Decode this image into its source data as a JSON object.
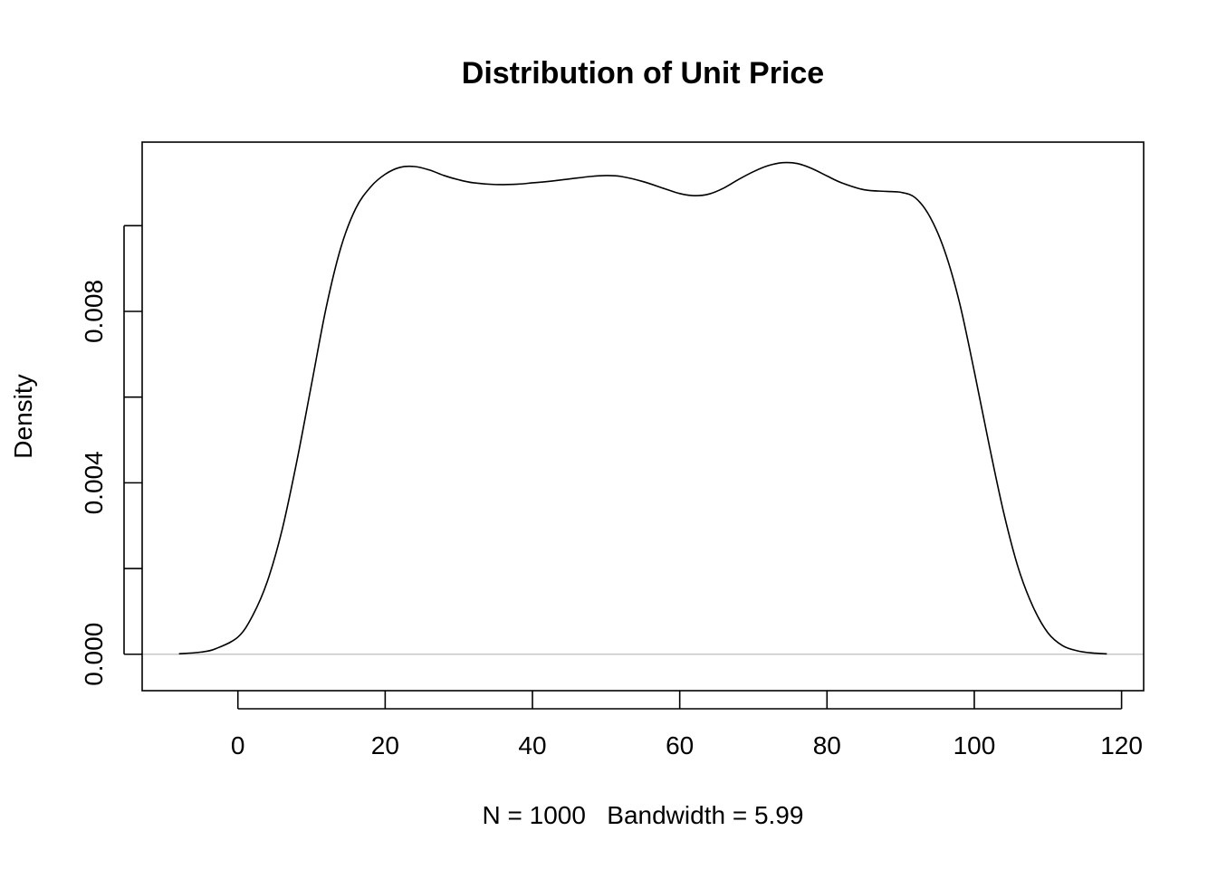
{
  "chart_data": {
    "type": "line",
    "title": "Distribution of Unit Price",
    "xlabel": "N = 1000   Bandwidth = 5.99",
    "ylabel": "Density",
    "xlim": [
      -13,
      123
    ],
    "ylim": [
      -0.00085,
      0.01195
    ],
    "x_ticks": [
      0,
      20,
      40,
      60,
      80,
      100,
      120
    ],
    "x_tick_labels": [
      "0",
      "20",
      "40",
      "60",
      "80",
      "100",
      "120"
    ],
    "y_ticks": [
      0.0,
      0.002,
      0.004,
      0.006,
      0.008,
      0.01
    ],
    "y_tick_labels": [
      "0.000",
      "",
      "0.004",
      "",
      "0.008",
      ""
    ],
    "baseline": 0,
    "grid": false,
    "legend": "none",
    "colors": {
      "line": "#000000",
      "baseline": "#bebebe",
      "box": "#000000"
    },
    "series": [
      {
        "x": [
          -8,
          -5,
          -3,
          0,
          2,
          4,
          6,
          8,
          10,
          12,
          14,
          16,
          18,
          20,
          22,
          24,
          26,
          28,
          30,
          32,
          35,
          38,
          40,
          42,
          45,
          48,
          50,
          52,
          55,
          58,
          60,
          62,
          64,
          66,
          68,
          70,
          72,
          74,
          76,
          78,
          80,
          82,
          85,
          88,
          90,
          92,
          94,
          96,
          98,
          100,
          102,
          104,
          106,
          108,
          110,
          112,
          114,
          116,
          118
        ],
        "y": [
          1e-05,
          5e-05,
          0.00013,
          0.0004,
          0.0009,
          0.0017,
          0.0029,
          0.0045,
          0.0063,
          0.0081,
          0.0095,
          0.0104,
          0.0109,
          0.0112,
          0.01136,
          0.01138,
          0.0113,
          0.01117,
          0.01107,
          0.011,
          0.01096,
          0.01097,
          0.011,
          0.01103,
          0.01109,
          0.01115,
          0.01117,
          0.01115,
          0.01103,
          0.01086,
          0.01075,
          0.0107,
          0.01074,
          0.01088,
          0.01108,
          0.01126,
          0.0114,
          0.01147,
          0.01145,
          0.01133,
          0.01116,
          0.011,
          0.01084,
          0.0108,
          0.01078,
          0.01065,
          0.0102,
          0.0094,
          0.0082,
          0.0066,
          0.0049,
          0.0033,
          0.002,
          0.0011,
          0.0005,
          0.0002,
          8e-05,
          3e-05,
          1e-05
        ]
      }
    ]
  }
}
